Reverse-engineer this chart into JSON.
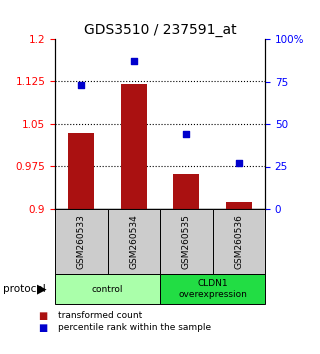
{
  "title": "GDS3510 / 237591_at",
  "samples": [
    "GSM260533",
    "GSM260534",
    "GSM260535",
    "GSM260536"
  ],
  "red_values": [
    1.035,
    1.12,
    0.962,
    0.912
  ],
  "blue_values": [
    0.73,
    0.87,
    0.44,
    0.27
  ],
  "ylim_left": [
    0.9,
    1.2
  ],
  "ylim_right": [
    0.0,
    1.0
  ],
  "yticks_left": [
    0.9,
    0.975,
    1.05,
    1.125,
    1.2
  ],
  "ytick_labels_left": [
    "0.9",
    "0.975",
    "1.05",
    "1.125",
    "1.2"
  ],
  "yticks_right": [
    0.0,
    0.25,
    0.5,
    0.75,
    1.0
  ],
  "ytick_labels_right": [
    "0",
    "25",
    "50",
    "75",
    "100%"
  ],
  "hlines": [
    0.975,
    1.05,
    1.125
  ],
  "groups": [
    {
      "label": "control",
      "indices": [
        0,
        1
      ],
      "color": "#aaffaa"
    },
    {
      "label": "CLDN1\noverexpression",
      "indices": [
        2,
        3
      ],
      "color": "#22dd44"
    }
  ],
  "bar_color": "#aa1111",
  "dot_color": "#0000cc",
  "protocol_label": "protocol",
  "legend_red": "transformed count",
  "legend_blue": "percentile rank within the sample",
  "bar_width": 0.5,
  "title_fontsize": 10,
  "tick_fontsize": 7.5,
  "label_fontsize": 7
}
